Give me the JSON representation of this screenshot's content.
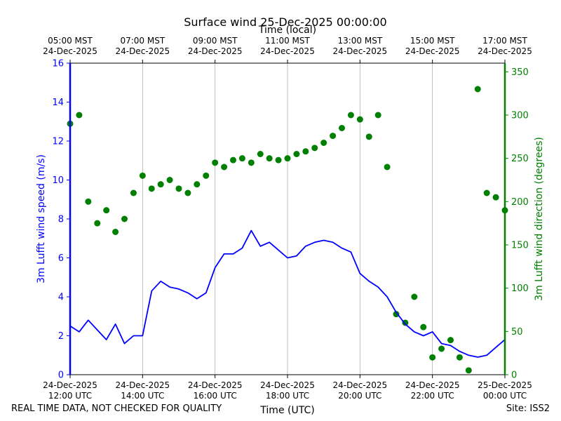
{
  "chart_data": {
    "type": "line",
    "title": "Surface wind 25-Dec-2025 00:00:00",
    "top_axis_label": "Time (local)",
    "top_ticks": [
      {
        "h": 0,
        "line1": "05:00 MST",
        "line2": "24-Dec-2025"
      },
      {
        "h": 2,
        "line1": "07:00 MST",
        "line2": "24-Dec-2025"
      },
      {
        "h": 4,
        "line1": "09:00 MST",
        "line2": "24-Dec-2025"
      },
      {
        "h": 6,
        "line1": "11:00 MST",
        "line2": "24-Dec-2025"
      },
      {
        "h": 8,
        "line1": "13:00 MST",
        "line2": "24-Dec-2025"
      },
      {
        "h": 10,
        "line1": "15:00 MST",
        "line2": "24-Dec-2025"
      },
      {
        "h": 12,
        "line1": "17:00 MST",
        "line2": "24-Dec-2025"
      }
    ],
    "bottom_ticks": [
      {
        "h": 0,
        "line1": "24-Dec-2025",
        "line2": "12:00 UTC"
      },
      {
        "h": 2,
        "line1": "24-Dec-2025",
        "line2": "14:00 UTC"
      },
      {
        "h": 4,
        "line1": "24-Dec-2025",
        "line2": "16:00 UTC"
      },
      {
        "h": 6,
        "line1": "24-Dec-2025",
        "line2": "18:00 UTC"
      },
      {
        "h": 8,
        "line1": "24-Dec-2025",
        "line2": "20:00 UTC"
      },
      {
        "h": 10,
        "line1": "24-Dec-2025",
        "line2": "22:00 UTC"
      },
      {
        "h": 12,
        "line1": "25-Dec-2025",
        "line2": "00:00 UTC"
      }
    ],
    "xlabel": "Time (UTC)",
    "xlim_hours": [
      0,
      12
    ],
    "ylabel_left": "3m Lufft wind speed (m/s)",
    "ylim_left": [
      0,
      16
    ],
    "yticks_left": [
      0,
      2,
      4,
      6,
      8,
      10,
      12,
      14,
      16
    ],
    "ylabel_right": "3m Lufft wind direction (degrees)",
    "ylim_right": [
      0,
      360
    ],
    "yticks_right": [
      0,
      50,
      100,
      150,
      200,
      250,
      300,
      350
    ],
    "grid": "vertical",
    "series": [
      {
        "name": "Wind speed",
        "axis": "left",
        "style": "line",
        "color": "#0000ff",
        "x": [
          0,
          0.25,
          0.5,
          0.75,
          1,
          1.25,
          1.5,
          1.75,
          2,
          2.25,
          2.5,
          2.75,
          3,
          3.25,
          3.5,
          3.75,
          4,
          4.25,
          4.5,
          4.75,
          5,
          5.25,
          5.5,
          5.75,
          6,
          6.25,
          6.5,
          6.75,
          7,
          7.25,
          7.5,
          7.75,
          8,
          8.25,
          8.5,
          8.75,
          9,
          9.25,
          9.5,
          9.75,
          10,
          10.25,
          10.5,
          10.75,
          11,
          11.25,
          11.5,
          11.75,
          12
        ],
        "values": [
          2.5,
          2.2,
          2.8,
          2.3,
          1.8,
          2.6,
          1.6,
          2.0,
          2.0,
          4.3,
          4.8,
          4.5,
          4.4,
          4.2,
          3.9,
          4.2,
          5.5,
          6.2,
          6.2,
          6.5,
          7.4,
          6.6,
          6.8,
          6.4,
          6.0,
          6.1,
          6.6,
          6.8,
          6.9,
          6.8,
          6.5,
          6.3,
          5.2,
          4.8,
          4.5,
          4.0,
          3.2,
          2.6,
          2.2,
          2.0,
          2.2,
          1.6,
          1.5,
          1.2,
          1.0,
          0.9,
          1.0,
          1.4,
          1.8
        ]
      },
      {
        "name": "Wind direction",
        "axis": "right",
        "style": "markers",
        "color": "#008000",
        "x": [
          0,
          0.25,
          0.5,
          0.75,
          1,
          1.25,
          1.5,
          1.75,
          2,
          2.25,
          2.5,
          2.75,
          3,
          3.25,
          3.5,
          3.75,
          4,
          4.25,
          4.5,
          4.75,
          5,
          5.25,
          5.5,
          5.75,
          6,
          6.25,
          6.5,
          6.75,
          7,
          7.25,
          7.5,
          7.75,
          8,
          8.25,
          8.5,
          8.75,
          9,
          9.25,
          9.5,
          9.75,
          10,
          10.25,
          10.5,
          10.75,
          11,
          11.25,
          11.5,
          11.75,
          12
        ],
        "values": [
          290,
          300,
          200,
          175,
          190,
          165,
          180,
          210,
          230,
          215,
          220,
          225,
          215,
          210,
          220,
          230,
          245,
          240,
          248,
          250,
          245,
          255,
          250,
          248,
          250,
          255,
          258,
          262,
          268,
          276,
          285,
          300,
          295,
          275,
          300,
          240,
          70,
          60,
          90,
          55,
          20,
          30,
          40,
          20,
          5,
          330,
          210,
          205,
          190
        ]
      }
    ]
  },
  "footer": {
    "disclaimer": "REAL TIME DATA, NOT CHECKED FOR QUALITY",
    "site": "Site: ISS2"
  }
}
